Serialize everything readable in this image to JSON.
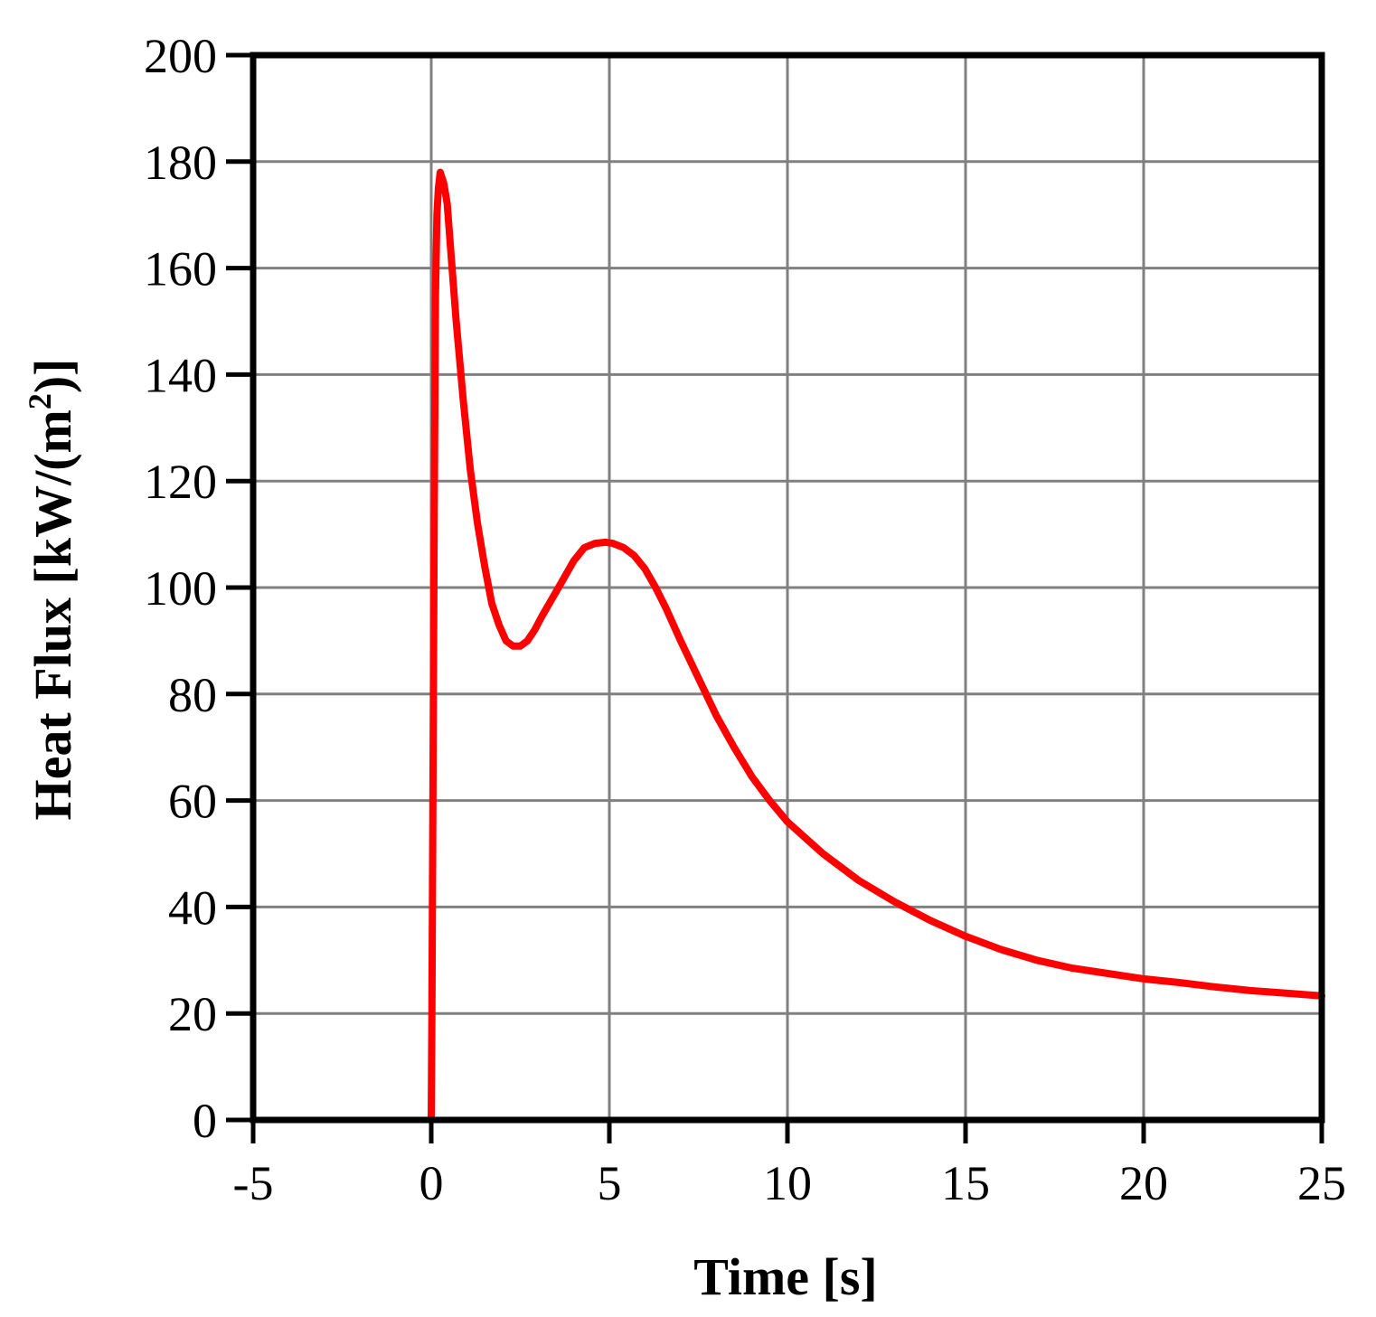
{
  "chart_data": {
    "type": "line",
    "title": "",
    "xlabel": "Time [s]",
    "ylabel_main": "Heat Flux [kW/(m",
    "ylabel_sup": "2",
    "ylabel_end": ")]",
    "xlim": [
      -5,
      25
    ],
    "ylim": [
      0,
      200
    ],
    "xticks": [
      -5,
      0,
      5,
      10,
      15,
      20,
      25
    ],
    "yticks": [
      0,
      20,
      40,
      60,
      80,
      100,
      120,
      140,
      160,
      180,
      200
    ],
    "grid": true,
    "colors": {
      "line": "#ff0000",
      "grid": "#808080",
      "axis": "#000000"
    },
    "series": [
      {
        "x": [
          0,
          0.02,
          0.05,
          0.08,
          0.12,
          0.16,
          0.2,
          0.25,
          0.3,
          0.35,
          0.45,
          0.55,
          0.7,
          0.9,
          1.1,
          1.3,
          1.5,
          1.7,
          1.9,
          2.1,
          2.3,
          2.5,
          2.7,
          2.9,
          3.1,
          3.4,
          3.7,
          4.0,
          4.3,
          4.6,
          4.9,
          5.1,
          5.4,
          5.7,
          6.0,
          6.3,
          6.6,
          7.0,
          7.5,
          8.0,
          8.5,
          9.0,
          9.5,
          10.0,
          11.0,
          12.0,
          13.0,
          14.0,
          15.0,
          16.0,
          17.0,
          18.0,
          19.0,
          20.0,
          21.0,
          22.0,
          23.0,
          24.0,
          25.0
        ],
        "y": [
          0,
          22,
          66,
          110,
          155,
          170,
          175,
          178,
          177,
          176,
          172,
          163,
          150,
          135,
          122,
          112,
          104,
          97,
          93,
          90,
          89,
          89,
          90,
          92,
          94.5,
          98,
          101.5,
          105,
          107.5,
          108.3,
          108.5,
          108.3,
          107.5,
          106,
          103.5,
          100,
          96,
          90,
          83,
          76,
          70,
          64.5,
          60,
          56,
          50,
          45,
          41,
          37.5,
          34.5,
          32,
          30,
          28.5,
          27.5,
          26.5,
          25.8,
          25,
          24.3,
          23.8,
          23.3
        ]
      }
    ]
  }
}
